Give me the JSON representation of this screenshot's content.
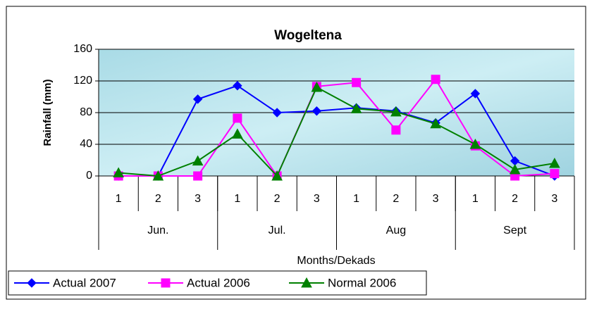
{
  "chart_data": {
    "type": "line",
    "title": "Wogeltena",
    "y_label": "Rainfall (mm)",
    "x_label": "Months/Dekads",
    "categories": [
      "1",
      "2",
      "3",
      "1",
      "2",
      "3",
      "1",
      "2",
      "3",
      "1",
      "2",
      "3"
    ],
    "groups": [
      "Jun.",
      "Jul.",
      "Aug",
      "Sept"
    ],
    "ylim": [
      0,
      160
    ],
    "yticks": [
      0,
      40,
      80,
      120,
      160
    ],
    "grid": true,
    "series": [
      {
        "name": "Actual 2007",
        "color": "#0000ff",
        "marker": "diamond",
        "values": [
          0,
          0,
          97,
          114,
          80,
          82,
          86,
          82,
          67,
          104,
          19,
          0
        ]
      },
      {
        "name": "Actual 2006",
        "color": "#ff00ff",
        "marker": "square",
        "values": [
          0,
          0,
          0,
          73,
          0,
          113,
          118,
          58,
          122,
          38,
          0,
          3
        ]
      },
      {
        "name": "Normal 2006",
        "color": "#008000",
        "marker": "triangle",
        "values": [
          4,
          0,
          19,
          53,
          0,
          112,
          85,
          81,
          66,
          40,
          8,
          16
        ]
      }
    ]
  }
}
